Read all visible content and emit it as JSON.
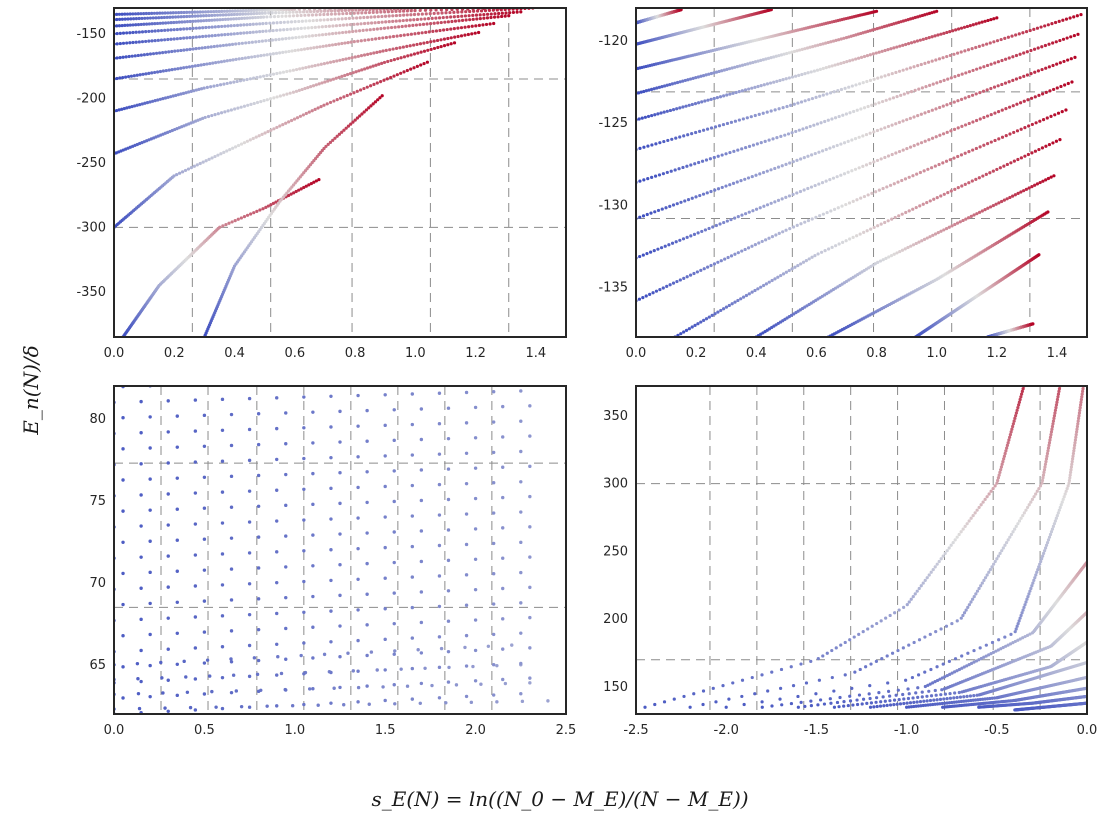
{
  "figure": {
    "ylabel": "E_n(N)/δ",
    "xlabel": "s_E(N) = ln((N_0 − M_E)/(N − M_E))"
  },
  "chart_data": [
    {
      "id": "top-left",
      "type": "scatter",
      "xlim": [
        0.0,
        1.5
      ],
      "ylim": [
        -385,
        -130
      ],
      "xticks": [
        "0.0",
        "0.2",
        "0.4",
        "0.6",
        "0.8",
        "1.0",
        "1.2",
        "1.4"
      ],
      "yticks": [
        "-150",
        "-200",
        "-250",
        "-300",
        "-350"
      ],
      "vlines": [
        0.26,
        0.52,
        0.79,
        1.05,
        1.31
      ],
      "hlines": [
        -185,
        -300
      ],
      "grid": "dashed guide lines",
      "colormap": "coolwarm",
      "series": [
        {
          "xmax": 0.68,
          "values": [
            {
              "x": 0.03,
              "y": -385
            },
            {
              "x": 0.15,
              "y": -345
            },
            {
              "x": 0.35,
              "y": -300
            },
            {
              "x": 0.5,
              "y": -285
            },
            {
              "x": 0.68,
              "y": -263
            }
          ]
        },
        {
          "xmax": 0.89,
          "values": [
            {
              "x": 0.3,
              "y": -385
            },
            {
              "x": 0.4,
              "y": -330
            },
            {
              "x": 0.55,
              "y": -280
            },
            {
              "x": 0.7,
              "y": -238
            },
            {
              "x": 0.89,
              "y": -198
            }
          ]
        },
        {
          "xmax": 1.04,
          "values": [
            {
              "x": 0.0,
              "y": -300
            },
            {
              "x": 0.2,
              "y": -260
            },
            {
              "x": 0.4,
              "y": -238
            },
            {
              "x": 0.7,
              "y": -205
            },
            {
              "x": 1.04,
              "y": -172
            }
          ]
        },
        {
          "xmax": 1.13,
          "values": [
            {
              "x": 0.0,
              "y": -243
            },
            {
              "x": 0.3,
              "y": -215
            },
            {
              "x": 0.6,
              "y": -195
            },
            {
              "x": 0.9,
              "y": -172
            },
            {
              "x": 1.13,
              "y": -157
            }
          ]
        },
        {
          "xmax": 1.21,
          "values": [
            {
              "x": 0.0,
              "y": -210
            },
            {
              "x": 0.3,
              "y": -192
            },
            {
              "x": 0.6,
              "y": -178
            },
            {
              "x": 0.9,
              "y": -163
            },
            {
              "x": 1.21,
              "y": -149
            }
          ]
        },
        {
          "xmax": 1.26,
          "values": [
            {
              "x": 0.0,
              "y": -185
            },
            {
              "x": 0.4,
              "y": -170
            },
            {
              "x": 0.8,
              "y": -156
            },
            {
              "x": 1.26,
              "y": -142
            }
          ]
        },
        {
          "xmax": 1.31,
          "values": [
            {
              "x": 0.0,
              "y": -169
            },
            {
              "x": 0.4,
              "y": -158
            },
            {
              "x": 0.8,
              "y": -148
            },
            {
              "x": 1.31,
              "y": -136
            }
          ]
        },
        {
          "xmax": 1.35,
          "values": [
            {
              "x": 0.0,
              "y": -158
            },
            {
              "x": 0.5,
              "y": -148
            },
            {
              "x": 1.0,
              "y": -139
            },
            {
              "x": 1.35,
              "y": -133
            }
          ]
        },
        {
          "xmax": 1.39,
          "values": [
            {
              "x": 0.0,
              "y": -150
            },
            {
              "x": 0.5,
              "y": -142
            },
            {
              "x": 1.0,
              "y": -135
            },
            {
              "x": 1.39,
              "y": -130
            }
          ]
        },
        {
          "xmax": 1.42,
          "values": [
            {
              "x": 0.0,
              "y": -144
            },
            {
              "x": 0.5,
              "y": -137
            },
            {
              "x": 1.0,
              "y": -132
            },
            {
              "x": 1.42,
              "y": -129
            }
          ]
        },
        {
          "xmax": 1.45,
          "values": [
            {
              "x": 0.0,
              "y": -139
            },
            {
              "x": 0.5,
              "y": -134
            },
            {
              "x": 1.0,
              "y": -130
            },
            {
              "x": 1.45,
              "y": -128
            }
          ]
        },
        {
          "xmax": 1.48,
          "values": [
            {
              "x": 0.0,
              "y": -135
            },
            {
              "x": 0.6,
              "y": -131
            },
            {
              "x": 1.48,
              "y": -128
            }
          ]
        }
      ]
    },
    {
      "id": "top-right",
      "type": "scatter",
      "xlim": [
        0.0,
        1.5
      ],
      "ylim": [
        -138,
        -118
      ],
      "xticks": [
        "0.0",
        "0.2",
        "0.4",
        "0.6",
        "0.8",
        "1.0",
        "1.2",
        "1.4"
      ],
      "yticks": [
        "-120",
        "-125",
        "-130",
        "-135"
      ],
      "vlines": [
        0.26,
        0.52,
        0.79,
        1.05,
        1.31
      ],
      "hlines": [
        -123.1,
        -130.8
      ],
      "grid": "dashed guide lines",
      "colormap": "coolwarm",
      "series": [
        {
          "xmax": 1.32,
          "values": [
            {
              "x": 1.17,
              "y": -138
            },
            {
              "x": 1.32,
              "y": -137.2
            }
          ]
        },
        {
          "xmax": 1.34,
          "values": [
            {
              "x": 0.93,
              "y": -138
            },
            {
              "x": 1.34,
              "y": -133.0
            }
          ]
        },
        {
          "xmax": 1.37,
          "values": [
            {
              "x": 0.64,
              "y": -138
            },
            {
              "x": 1.0,
              "y": -134.5
            },
            {
              "x": 1.37,
              "y": -130.4
            }
          ]
        },
        {
          "xmax": 1.39,
          "values": [
            {
              "x": 0.4,
              "y": -138
            },
            {
              "x": 0.8,
              "y": -133.5
            },
            {
              "x": 1.39,
              "y": -128.2
            }
          ]
        },
        {
          "xmax": 1.41,
          "values": [
            {
              "x": 0.13,
              "y": -138
            },
            {
              "x": 0.6,
              "y": -133.0
            },
            {
              "x": 1.41,
              "y": -126.0
            }
          ]
        },
        {
          "xmax": 1.43,
          "values": [
            {
              "x": 0.0,
              "y": -135.8
            },
            {
              "x": 0.5,
              "y": -131.5
            },
            {
              "x": 1.43,
              "y": -124.2
            }
          ]
        },
        {
          "xmax": 1.45,
          "values": [
            {
              "x": 0.0,
              "y": -133.2
            },
            {
              "x": 0.5,
              "y": -129.5
            },
            {
              "x": 1.45,
              "y": -122.5
            }
          ]
        },
        {
          "xmax": 1.46,
          "values": [
            {
              "x": 0.0,
              "y": -130.8
            },
            {
              "x": 0.5,
              "y": -127.5
            },
            {
              "x": 1.46,
              "y": -121.0
            }
          ]
        },
        {
          "xmax": 1.47,
          "values": [
            {
              "x": 0.0,
              "y": -128.6
            },
            {
              "x": 0.5,
              "y": -125.7
            },
            {
              "x": 1.47,
              "y": -119.6
            }
          ]
        },
        {
          "xmax": 1.48,
          "values": [
            {
              "x": 0.0,
              "y": -126.6
            },
            {
              "x": 0.5,
              "y": -124.0
            },
            {
              "x": 1.48,
              "y": -118.4
            }
          ]
        },
        {
          "xmax": 1.49,
          "values": [
            {
              "x": 0.0,
              "y": -124.8
            },
            {
              "x": 0.6,
              "y": -121.8
            },
            {
              "x": 1.2,
              "y": -118.6
            }
          ]
        },
        {
          "xmax": 1.49,
          "values": [
            {
              "x": 0.0,
              "y": -123.2
            },
            {
              "x": 0.7,
              "y": -119.8
            },
            {
              "x": 1.0,
              "y": -118.2
            }
          ]
        },
        {
          "xmax": 1.49,
          "values": [
            {
              "x": 0.0,
              "y": -121.7
            },
            {
              "x": 0.8,
              "y": -118.2
            }
          ]
        },
        {
          "xmax": 1.49,
          "values": [
            {
              "x": 0.0,
              "y": -120.2
            },
            {
              "x": 0.45,
              "y": -118.1
            }
          ]
        },
        {
          "xmax": 1.49,
          "values": [
            {
              "x": 0.0,
              "y": -118.9
            },
            {
              "x": 0.15,
              "y": -118.1
            }
          ]
        }
      ]
    },
    {
      "id": "bottom-left",
      "type": "scatter",
      "xlim": [
        0.0,
        2.5
      ],
      "ylim": [
        62,
        82
      ],
      "xticks": [
        "0.0",
        "0.5",
        "1.0",
        "1.5",
        "2.0",
        "2.5"
      ],
      "yticks": [
        "65",
        "70",
        "75",
        "80"
      ],
      "vlines": [
        0.26,
        0.52,
        0.79,
        1.05,
        1.31,
        1.57,
        1.83,
        2.09
      ],
      "hlines": [
        77.3,
        68.5
      ],
      "grid": "dashed guide lines",
      "colormap": "coolwarm",
      "series_description": "dense families of rising point sequences (blue shades)",
      "series": [
        {
          "values": [
            {
              "x": 0.0,
              "y": 62.3
            },
            {
              "x": 2.4,
              "y": 62.8
            }
          ]
        },
        {
          "values": [
            {
              "x": 0.0,
              "y": 63.2
            },
            {
              "x": 2.3,
              "y": 63.9
            }
          ]
        },
        {
          "values": [
            {
              "x": 0.0,
              "y": 64.1
            },
            {
              "x": 2.25,
              "y": 65.0
            }
          ]
        },
        {
          "values": [
            {
              "x": 0.0,
              "y": 65.0
            },
            {
              "x": 2.2,
              "y": 66.2
            }
          ]
        }
      ]
    },
    {
      "id": "bottom-right",
      "type": "scatter",
      "xlim": [
        -2.5,
        0.0
      ],
      "ylim": [
        130,
        372
      ],
      "xticks": [
        "-2.5",
        "-2.0",
        "-1.5",
        "-1.0",
        "-0.5",
        "0.0"
      ],
      "yticks": [
        "150",
        "200",
        "250",
        "300",
        "350"
      ],
      "vlines": [
        -2.09,
        -1.83,
        -1.57,
        -1.31,
        -1.05,
        -0.79,
        -0.52,
        -0.26
      ],
      "hlines": [
        300,
        170
      ],
      "grid": "dashed guide lines",
      "colormap": "coolwarm",
      "series": [
        {
          "values": [
            {
              "x": -2.45,
              "y": 135
            },
            {
              "x": -1.5,
              "y": 170
            },
            {
              "x": -1.0,
              "y": 210
            },
            {
              "x": -0.5,
              "y": 300
            },
            {
              "x": -0.35,
              "y": 372
            }
          ]
        },
        {
          "values": [
            {
              "x": -2.2,
              "y": 135
            },
            {
              "x": -1.3,
              "y": 160
            },
            {
              "x": -0.7,
              "y": 200
            },
            {
              "x": -0.25,
              "y": 300
            },
            {
              "x": -0.15,
              "y": 372
            }
          ]
        },
        {
          "values": [
            {
              "x": -2.0,
              "y": 135
            },
            {
              "x": -1.0,
              "y": 155
            },
            {
              "x": -0.4,
              "y": 190
            },
            {
              "x": -0.1,
              "y": 300
            },
            {
              "x": -0.02,
              "y": 372
            }
          ]
        },
        {
          "values": [
            {
              "x": -1.8,
              "y": 135
            },
            {
              "x": -0.9,
              "y": 150
            },
            {
              "x": -0.3,
              "y": 190
            },
            {
              "x": 0.0,
              "y": 242
            }
          ]
        },
        {
          "values": [
            {
              "x": -1.6,
              "y": 135
            },
            {
              "x": -0.8,
              "y": 148
            },
            {
              "x": -0.2,
              "y": 180
            },
            {
              "x": 0.0,
              "y": 205
            }
          ]
        },
        {
          "values": [
            {
              "x": -1.4,
              "y": 135
            },
            {
              "x": -0.7,
              "y": 146
            },
            {
              "x": -0.2,
              "y": 165
            },
            {
              "x": 0.0,
              "y": 183
            }
          ]
        },
        {
          "values": [
            {
              "x": -1.2,
              "y": 135
            },
            {
              "x": -0.6,
              "y": 144
            },
            {
              "x": 0.0,
              "y": 168
            }
          ]
        },
        {
          "values": [
            {
              "x": -1.0,
              "y": 135
            },
            {
              "x": -0.5,
              "y": 142
            },
            {
              "x": 0.0,
              "y": 157
            }
          ]
        },
        {
          "values": [
            {
              "x": -0.8,
              "y": 135
            },
            {
              "x": -0.4,
              "y": 140
            },
            {
              "x": 0.0,
              "y": 149
            }
          ]
        },
        {
          "values": [
            {
              "x": -0.6,
              "y": 135
            },
            {
              "x": -0.3,
              "y": 138
            },
            {
              "x": 0.0,
              "y": 143
            }
          ]
        },
        {
          "values": [
            {
              "x": -0.4,
              "y": 133
            },
            {
              "x": 0.0,
              "y": 138
            }
          ]
        }
      ]
    }
  ]
}
